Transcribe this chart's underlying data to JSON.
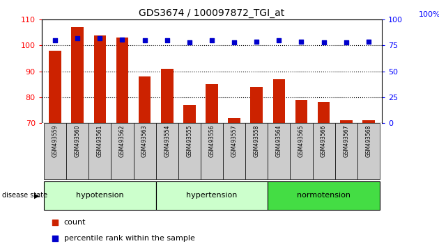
{
  "title": "GDS3674 / 100097872_TGI_at",
  "samples": [
    "GSM493559",
    "GSM493560",
    "GSM493561",
    "GSM493562",
    "GSM493563",
    "GSM493554",
    "GSM493555",
    "GSM493556",
    "GSM493557",
    "GSM493558",
    "GSM493564",
    "GSM493565",
    "GSM493566",
    "GSM493567",
    "GSM493568"
  ],
  "bar_values": [
    98,
    107,
    104,
    103,
    88,
    91,
    77,
    85,
    72,
    84,
    87,
    79,
    78,
    71,
    71
  ],
  "pct_values": [
    80,
    82,
    82,
    81,
    80,
    80,
    78,
    80,
    78,
    79,
    80,
    79,
    78,
    78,
    79
  ],
  "groups": [
    {
      "label": "hypotension",
      "start": 0,
      "end": 5,
      "color": "#ccffcc"
    },
    {
      "label": "hypertension",
      "start": 5,
      "end": 10,
      "color": "#ccffcc"
    },
    {
      "label": "normotension",
      "start": 10,
      "end": 15,
      "color": "#44dd44"
    }
  ],
  "ylim_left": [
    70,
    110
  ],
  "ylim_right": [
    0,
    100
  ],
  "yticks_left": [
    70,
    80,
    90,
    100,
    110
  ],
  "yticks_right": [
    0,
    25,
    50,
    75,
    100
  ],
  "bar_color": "#cc2200",
  "scatter_color": "#0000cc",
  "grid_levels": [
    80,
    90,
    100
  ],
  "background_color": "#ffffff",
  "bar_width": 0.55,
  "legend_count_label": "count",
  "legend_pct_label": "percentile rank within the sample",
  "disease_label": "disease state"
}
